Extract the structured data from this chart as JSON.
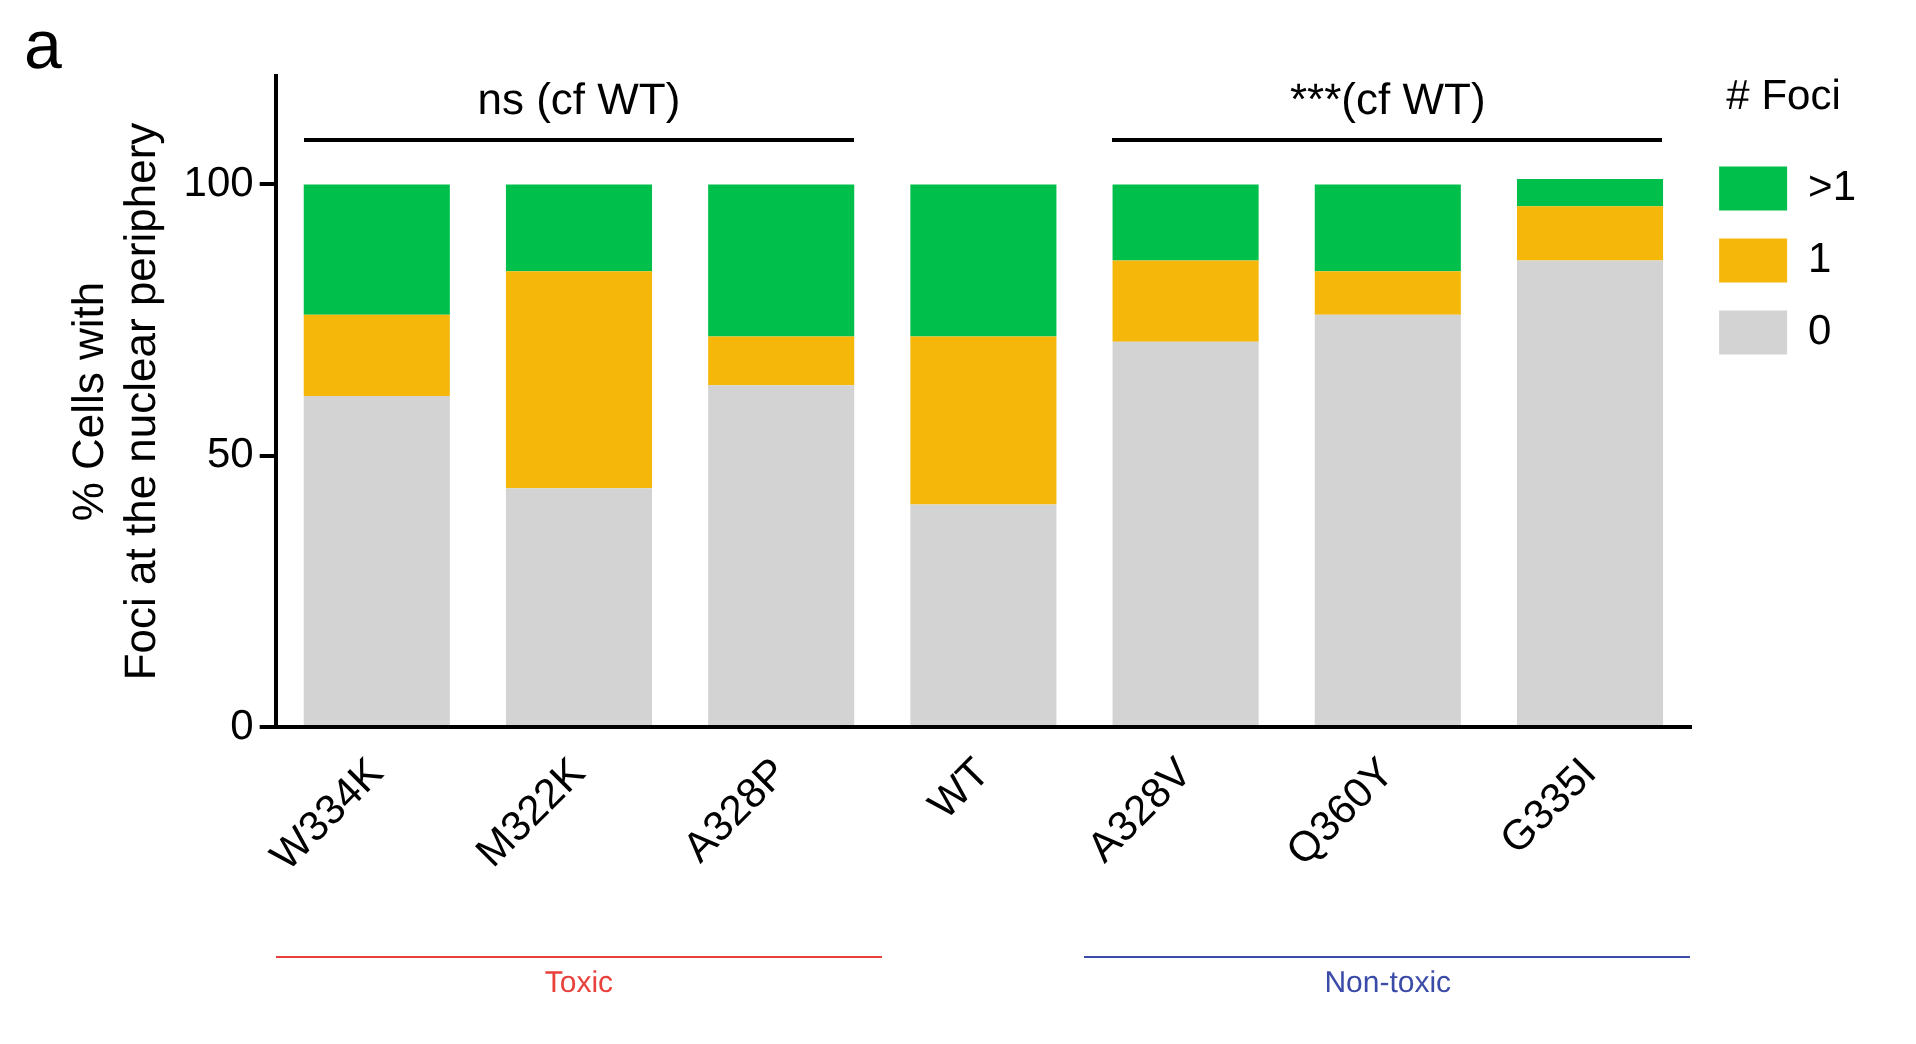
{
  "chart_data": {
    "type": "bar",
    "stacked": true,
    "ylabel": "% Cells with\nFoci at the nuclear periphery",
    "legend_title": "# Foci",
    "legend": "top right",
    "categories": [
      "W334K",
      "M322K",
      "A328P",
      "WT",
      "A328V",
      "Q360Y",
      "G335I"
    ],
    "series": [
      {
        "name": "0",
        "color": "#d3d3d3",
        "values": [
          61,
          44,
          63,
          41,
          71,
          76,
          86
        ]
      },
      {
        "name": "1",
        "color": "#f5b70a",
        "values": [
          15,
          40,
          9,
          31,
          15,
          8,
          10
        ]
      },
      {
        "name": ">1",
        "color": "#00bf4b",
        "values": [
          24,
          16,
          28,
          28,
          14,
          16,
          5
        ]
      }
    ],
    "ylim": [
      0,
      120
    ],
    "yticks": [
      0,
      50,
      100
    ],
    "grid": false,
    "annotations": [
      "a",
      "ns (cf WT)",
      "***(cf WT)",
      "Toxic",
      "Non-toxic"
    ]
  }
}
